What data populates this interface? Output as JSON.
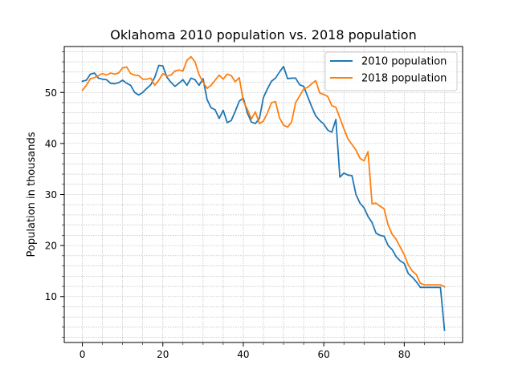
{
  "chart_data": {
    "type": "line",
    "title": "Oklahoma 2010 population vs. 2018 population",
    "xlabel": "",
    "ylabel": "Population in thousands",
    "xlim": [
      -4.5,
      94.5
    ],
    "ylim": [
      1,
      59
    ],
    "xticks": [
      0,
      20,
      40,
      60,
      80
    ],
    "yticks": [
      10,
      20,
      30,
      40,
      50
    ],
    "xtick_labels": [
      "0",
      "20",
      "40",
      "60",
      "80"
    ],
    "ytick_labels": [
      "10",
      "20",
      "30",
      "40",
      "50"
    ],
    "grid": true,
    "legend_position": "top-right",
    "x": [
      0,
      1,
      2,
      3,
      4,
      5,
      6,
      7,
      8,
      9,
      10,
      11,
      12,
      13,
      14,
      15,
      16,
      17,
      18,
      19,
      20,
      21,
      22,
      23,
      24,
      25,
      26,
      27,
      28,
      29,
      30,
      31,
      32,
      33,
      34,
      35,
      36,
      37,
      38,
      39,
      40,
      41,
      42,
      43,
      44,
      45,
      46,
      47,
      48,
      49,
      50,
      51,
      52,
      53,
      54,
      55,
      56,
      57,
      58,
      59,
      60,
      61,
      62,
      63,
      64,
      65,
      66,
      67,
      68,
      69,
      70,
      71,
      72,
      73,
      74,
      75,
      76,
      77,
      78,
      79,
      80,
      81,
      82,
      83,
      84,
      85,
      86,
      87,
      88,
      89,
      90
    ],
    "series": [
      {
        "name": "2010 population",
        "color": "#1f77b4",
        "values": [
          52.2,
          52.4,
          53.6,
          53.8,
          52.8,
          52.6,
          52.5,
          51.8,
          51.7,
          51.9,
          52.4,
          51.8,
          51.4,
          50.0,
          49.5,
          50.0,
          50.8,
          51.5,
          53.0,
          55.3,
          55.2,
          53.0,
          52.0,
          51.2,
          51.8,
          52.5,
          51.4,
          52.8,
          52.5,
          51.4,
          52.7,
          48.6,
          47.0,
          46.6,
          44.9,
          46.5,
          44.1,
          44.5,
          46.3,
          48.3,
          48.9,
          46.0,
          44.2,
          43.9,
          44.9,
          49.0,
          50.7,
          52.2,
          52.8,
          54.0,
          55.1,
          52.7,
          52.8,
          52.8,
          51.5,
          51.2,
          49.2,
          47.2,
          45.4,
          44.5,
          43.8,
          42.6,
          42.2,
          44.7,
          33.4,
          34.2,
          33.8,
          33.7,
          30.0,
          28.3,
          27.4,
          25.7,
          24.5,
          22.4,
          22.0,
          21.8,
          20.0,
          19.2,
          17.8,
          17.0,
          16.5,
          14.5,
          13.8,
          12.9,
          11.8,
          11.8,
          11.8,
          11.8,
          11.8,
          11.8,
          3.4
        ]
      },
      {
        "name": "2018 population",
        "color": "#ff7f0e",
        "values": [
          50.4,
          51.4,
          52.7,
          52.9,
          53.3,
          53.7,
          53.4,
          53.8,
          53.6,
          53.8,
          54.8,
          55.0,
          53.7,
          53.4,
          53.3,
          52.6,
          52.6,
          52.8,
          51.4,
          52.4,
          53.7,
          53.2,
          53.4,
          54.2,
          54.4,
          54.2,
          56.3,
          57.0,
          56.0,
          53.5,
          52.0,
          50.8,
          51.4,
          52.4,
          53.4,
          52.6,
          53.6,
          53.3,
          52.1,
          52.9,
          48.3,
          46.7,
          44.8,
          46.2,
          43.9,
          44.4,
          46.0,
          48.0,
          48.2,
          45.0,
          43.6,
          43.2,
          44.2,
          48.0,
          49.3,
          50.7,
          51.0,
          51.7,
          52.3,
          49.9,
          49.6,
          49.2,
          47.4,
          47.1,
          45.0,
          42.9,
          40.9,
          39.8,
          38.7,
          37.1,
          36.6,
          38.4,
          28.2,
          28.3,
          27.7,
          27.2,
          24.0,
          22.2,
          21.2,
          19.7,
          18.2,
          16.2,
          15.0,
          14.3,
          12.6,
          12.3,
          12.3,
          12.3,
          12.3,
          12.3,
          11.9
        ]
      }
    ]
  }
}
